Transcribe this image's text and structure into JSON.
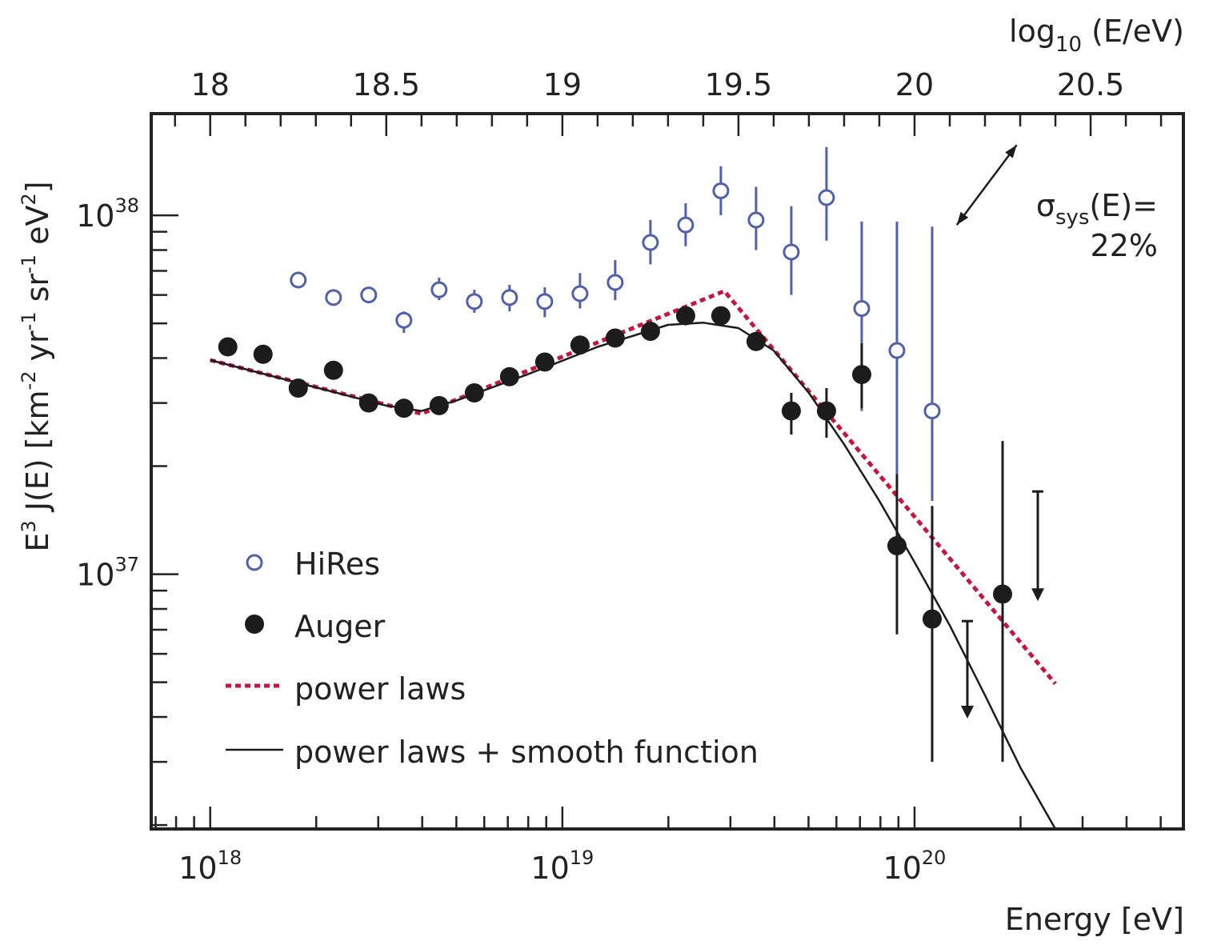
{
  "chart_data": {
    "type": "scatter",
    "xlabel": "Energy [eV]",
    "ylabel": "E³ J(E) [km⁻² yr⁻¹ sr⁻¹ eV²]",
    "ylabel_parts": {
      "E": "E",
      "e_exp": "3",
      "rest1": " J(E) [km",
      "km_exp": "-2",
      "yr": " yr",
      "yr_exp": "-1",
      "sr": " sr",
      "sr_exp": "-1",
      "ev": " eV",
      "ev_exp": "2",
      "close": "]"
    },
    "top_xlabel": {
      "base": "log",
      "sub": "10",
      "rest": " (E/eV)"
    },
    "x_scale": "log",
    "y_scale": "log",
    "xlim": [
      6.8e+17,
      5.8e+20
    ],
    "ylim": [
      1.95e+36,
      1.92e+38
    ],
    "x_ticks": [
      {
        "value": 1e+18,
        "base": "10",
        "exp": "18"
      },
      {
        "value": 1e+19,
        "base": "10",
        "exp": "19"
      },
      {
        "value": 1e+20,
        "base": "10",
        "exp": "20"
      }
    ],
    "y_ticks": [
      {
        "value": 1e+37,
        "base": "10",
        "exp": "37"
      },
      {
        "value": 1e+38,
        "base": "10",
        "exp": "38"
      }
    ],
    "top_ticks": [
      {
        "value": 18,
        "label": "18"
      },
      {
        "value": 18.5,
        "label": "18.5"
      },
      {
        "value": 19,
        "label": "19"
      },
      {
        "value": 19.5,
        "label": "19.5"
      },
      {
        "value": 20,
        "label": "20"
      },
      {
        "value": 20.5,
        "label": "20.5"
      }
    ],
    "colors": {
      "hires": "#5060ab",
      "auger": "#1c1c1c",
      "power_law": "#c2183f",
      "smooth": "#1c1c1c",
      "axis": "#222222"
    },
    "series": [
      {
        "name": "HiRes",
        "marker": "open-circle",
        "points": [
          {
            "logE": 18.25,
            "y": 6.6e+37
          },
          {
            "logE": 18.35,
            "y": 5.9e+37
          },
          {
            "logE": 18.45,
            "y": 6e+37,
            "lo": 5.8e+37,
            "hi": 6.2e+37
          },
          {
            "logE": 18.55,
            "y": 5.1e+37,
            "lo": 4.7e+37,
            "hi": 5.4e+37
          },
          {
            "logE": 18.65,
            "y": 6.2e+37,
            "lo": 5.8e+37,
            "hi": 6.7e+37
          },
          {
            "logE": 18.75,
            "y": 5.75e+37,
            "lo": 5.35e+37,
            "hi": 6.2e+37
          },
          {
            "logE": 18.85,
            "y": 5.9e+37,
            "lo": 5.4e+37,
            "hi": 6.4e+37
          },
          {
            "logE": 18.95,
            "y": 5.75e+37,
            "lo": 5.2e+37,
            "hi": 6.3e+37
          },
          {
            "logE": 19.05,
            "y": 6.05e+37,
            "lo": 5.5e+37,
            "hi": 6.9e+37
          },
          {
            "logE": 19.15,
            "y": 6.5e+37,
            "lo": 5.8e+37,
            "hi": 7.5e+37
          },
          {
            "logE": 19.25,
            "y": 8.4e+37,
            "lo": 7.3e+37,
            "hi": 9.7e+37
          },
          {
            "logE": 19.35,
            "y": 9.4e+37,
            "lo": 8.2e+37,
            "hi": 1.08e+38
          },
          {
            "logE": 19.45,
            "y": 1.17e+38,
            "lo": 1e+38,
            "hi": 1.37e+38
          },
          {
            "logE": 19.55,
            "y": 9.7e+37,
            "lo": 8e+37,
            "hi": 1.2e+38
          },
          {
            "logE": 19.65,
            "y": 7.9e+37,
            "lo": 6e+37,
            "hi": 1.06e+38
          },
          {
            "logE": 19.75,
            "y": 1.12e+38,
            "lo": 8.5e+37,
            "hi": 1.55e+38
          },
          {
            "logE": 19.85,
            "y": 5.5e+37,
            "lo": 2.85e+37,
            "hi": 9.6e+37
          },
          {
            "logE": 19.95,
            "y": 4.2e+37,
            "lo": 1.9e+37,
            "hi": 9.6e+37
          },
          {
            "logE": 20.05,
            "y": 2.85e+37,
            "lo": 1.6e+37,
            "hi": 9.3e+37
          }
        ]
      },
      {
        "name": "Auger",
        "marker": "filled-circle",
        "points": [
          {
            "logE": 18.05,
            "y": 4.3e+37
          },
          {
            "logE": 18.15,
            "y": 4.1e+37
          },
          {
            "logE": 18.25,
            "y": 3.3e+37
          },
          {
            "logE": 18.35,
            "y": 3.7e+37
          },
          {
            "logE": 18.45,
            "y": 3e+37
          },
          {
            "logE": 18.55,
            "y": 2.9e+37
          },
          {
            "logE": 18.65,
            "y": 2.95e+37
          },
          {
            "logE": 18.75,
            "y": 3.2e+37
          },
          {
            "logE": 18.85,
            "y": 3.55e+37
          },
          {
            "logE": 18.95,
            "y": 3.9e+37
          },
          {
            "logE": 19.05,
            "y": 4.35e+37
          },
          {
            "logE": 19.15,
            "y": 4.55e+37
          },
          {
            "logE": 19.25,
            "y": 4.75e+37
          },
          {
            "logE": 19.35,
            "y": 5.25e+37
          },
          {
            "logE": 19.45,
            "y": 5.25e+37
          },
          {
            "logE": 19.55,
            "y": 4.45e+37
          },
          {
            "logE": 19.65,
            "y": 2.85e+37,
            "lo": 2.45e+37,
            "hi": 3.2e+37
          },
          {
            "logE": 19.75,
            "y": 2.85e+37,
            "lo": 2.4e+37,
            "hi": 3.3e+37
          },
          {
            "logE": 19.85,
            "y": 3.6e+37,
            "lo": 2.9e+37,
            "hi": 4.4e+37
          },
          {
            "logE": 19.95,
            "y": 1.2e+37,
            "lo": 6.8e+36,
            "hi": 1.9e+37
          },
          {
            "logE": 20.05,
            "y": 7.5e+36,
            "lo": 3e+36,
            "hi": 1.55e+37
          },
          {
            "logE": 20.25,
            "y": 8.8e+36,
            "lo": 3e+36,
            "hi": 2.35e+37
          }
        ]
      }
    ],
    "upper_limits": [
      {
        "logE": 20.15,
        "y_from": 7.4e+36,
        "y_to": 4e+36
      },
      {
        "logE": 20.35,
        "y_from": 1.7e+37,
        "y_to": 8.5e+36
      }
    ],
    "power_law_fit": [
      {
        "logE": 18.0,
        "y": 3.95e+37
      },
      {
        "logE": 18.6,
        "y": 2.8e+37
      },
      {
        "logE": 19.46,
        "y": 6.15e+37
      },
      {
        "logE": 20.4,
        "y": 4.95e+36
      }
    ],
    "smooth_fit": [
      {
        "logE": 18.0,
        "y": 3.95e+37
      },
      {
        "logE": 18.5,
        "y": 2.95e+37
      },
      {
        "logE": 18.6,
        "y": 2.85e+37
      },
      {
        "logE": 18.7,
        "y": 3.05e+37
      },
      {
        "logE": 18.9,
        "y": 3.6e+37
      },
      {
        "logE": 19.1,
        "y": 4.3e+37
      },
      {
        "logE": 19.3,
        "y": 4.95e+37
      },
      {
        "logE": 19.4,
        "y": 5.02e+37
      },
      {
        "logE": 19.5,
        "y": 4.85e+37
      },
      {
        "logE": 19.6,
        "y": 4.2e+37
      },
      {
        "logE": 19.7,
        "y": 3.2e+37
      },
      {
        "logE": 19.8,
        "y": 2.3e+37
      },
      {
        "logE": 19.9,
        "y": 1.6e+37
      },
      {
        "logE": 20.0,
        "y": 1.08e+37
      },
      {
        "logE": 20.1,
        "y": 7.2e+36
      },
      {
        "logE": 20.2,
        "y": 4.6e+36
      },
      {
        "logE": 20.3,
        "y": 2.9e+36
      },
      {
        "logE": 20.4,
        "y": 1.95e+36
      }
    ],
    "annotation": {
      "sigma": "σ",
      "sigma_sub": "sys",
      "sigma_rest": "(E)=",
      "value": "22%",
      "arrow_logE_from": 20.12,
      "arrow_y_from": 9.4e+37,
      "arrow_logE_to": 20.29,
      "arrow_y_to": 1.57e+38
    },
    "legend": {
      "position": "bottom-left",
      "entries": [
        {
          "label": "HiRes",
          "style": "open-circle"
        },
        {
          "label": "Auger",
          "style": "filled-circle"
        },
        {
          "label": "power laws",
          "style": "dashed"
        },
        {
          "label": "power laws + smooth function",
          "style": "solid"
        }
      ]
    }
  }
}
